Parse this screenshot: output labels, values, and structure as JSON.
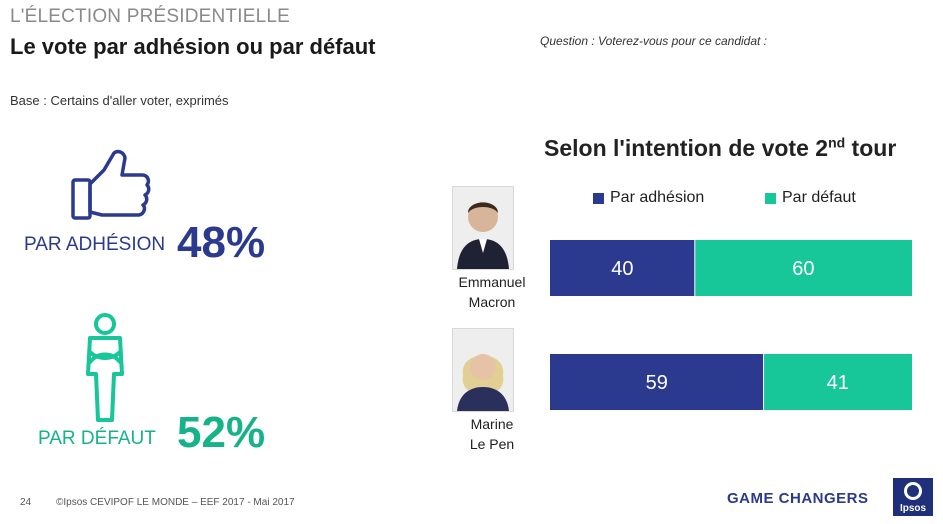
{
  "header": {
    "supertitle": "L'ÉLECTION PRÉSIDENTIELLE",
    "title": "Le vote par adhésion ou par défaut",
    "question": "Question : Voterez-vous pour ce candidat :",
    "base": "Base : Certains d'aller voter, exprimés"
  },
  "totals": {
    "adhesion_label": "PAR ADHÉSION",
    "adhesion_value": "48%",
    "defaut_label": "PAR DÉFAUT",
    "defaut_value": "52%"
  },
  "icons": {
    "thumbs_up": "thumbs-up-icon",
    "person_crossed_arms": "person-arms-crossed-icon"
  },
  "chart_data": {
    "type": "bar",
    "orientation": "horizontal",
    "stacked": true,
    "title_main": "Selon l'intention de vote 2",
    "title_sup": "nd",
    "title_end": " tour",
    "legend_position": "top",
    "categories": [
      "Emmanuel Macron",
      "Marine Le Pen"
    ],
    "category_lines": [
      [
        "Emmanuel",
        "Macron"
      ],
      [
        "Marine",
        "Le Pen"
      ]
    ],
    "series": [
      {
        "name": "Par adhésion",
        "values": [
          40,
          59
        ],
        "color": "#2b3a8e"
      },
      {
        "name": "Par défaut",
        "values": [
          60,
          41
        ],
        "color": "#17c699"
      }
    ],
    "xlim": [
      0,
      100
    ],
    "grid": false
  },
  "footer": {
    "page_number": "24",
    "source": "©Ipsos  CEVIPOF LE MONDE – EEF 2017 -  Mai 2017",
    "tagline": "GAME CHANGERS",
    "logo_text": "Ipsos"
  },
  "colors": {
    "navy": "#2b3a8e",
    "green": "#17c699",
    "green_text": "#16b38a"
  }
}
